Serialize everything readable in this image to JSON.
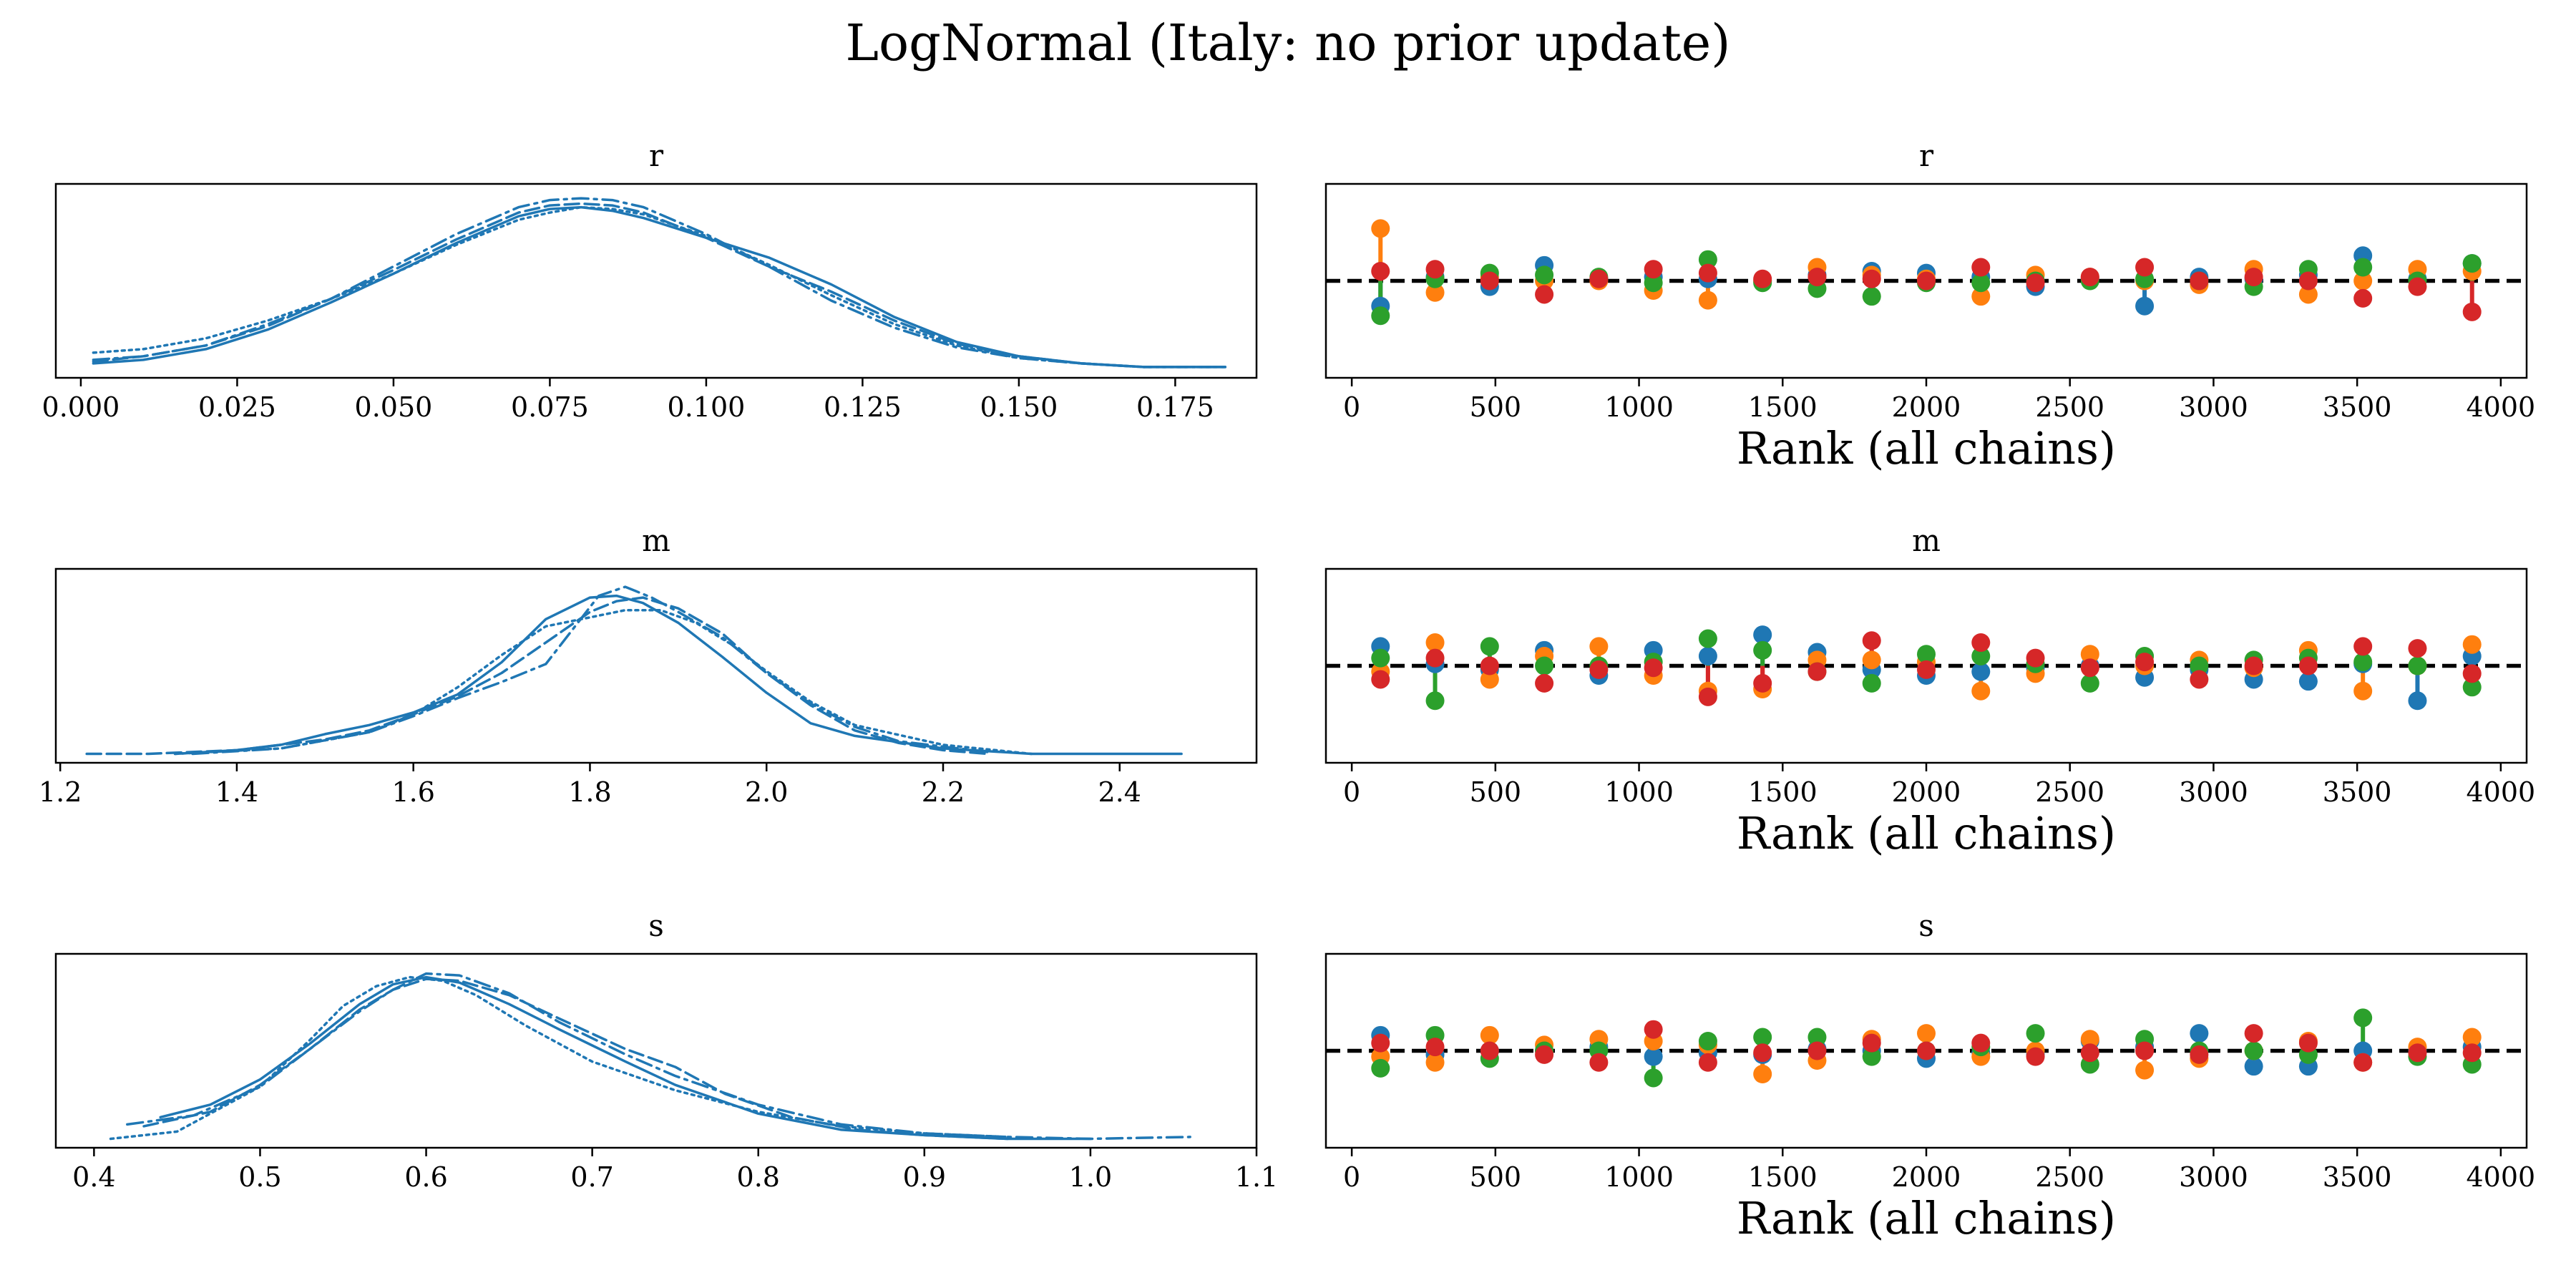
{
  "figure": {
    "title": "LogNormal (Italy: no prior update)"
  },
  "colors": {
    "line": "#1f77b4",
    "chains": [
      "#1f77b4",
      "#ff7f0e",
      "#2ca02c",
      "#d62728"
    ]
  },
  "chart_data": [
    {
      "id": "density-r",
      "type": "line",
      "kind": "density",
      "title": "r",
      "xlim": [
        -0.004,
        0.188
      ],
      "ylim": [
        0,
        1.08
      ],
      "grid": false,
      "xticks": [
        0.0,
        0.025,
        0.05,
        0.075,
        0.1,
        0.125,
        0.15,
        0.175
      ],
      "xtick_labels": [
        "0.000",
        "0.025",
        "0.050",
        "0.075",
        "0.100",
        "0.125",
        "0.150",
        "0.175"
      ],
      "series": [
        {
          "style": "solid",
          "x": [
            0.002,
            0.01,
            0.02,
            0.03,
            0.04,
            0.05,
            0.06,
            0.07,
            0.075,
            0.08,
            0.085,
            0.09,
            0.1,
            0.11,
            0.12,
            0.13,
            0.14,
            0.15,
            0.16,
            0.17,
            0.183
          ],
          "y": [
            0.08,
            0.1,
            0.16,
            0.27,
            0.42,
            0.58,
            0.75,
            0.9,
            0.94,
            0.95,
            0.93,
            0.89,
            0.78,
            0.67,
            0.52,
            0.34,
            0.2,
            0.12,
            0.08,
            0.06,
            0.06
          ]
        },
        {
          "style": "dashed",
          "x": [
            0.002,
            0.01,
            0.02,
            0.03,
            0.04,
            0.05,
            0.06,
            0.07,
            0.075,
            0.08,
            0.085,
            0.09,
            0.1,
            0.11,
            0.12,
            0.13,
            0.14,
            0.15,
            0.16,
            0.17,
            0.183
          ],
          "y": [
            0.09,
            0.12,
            0.18,
            0.29,
            0.44,
            0.6,
            0.77,
            0.92,
            0.96,
            0.97,
            0.96,
            0.92,
            0.78,
            0.62,
            0.48,
            0.32,
            0.19,
            0.12,
            0.08,
            0.06,
            0.06
          ]
        },
        {
          "style": "dashdot",
          "x": [
            0.002,
            0.01,
            0.02,
            0.03,
            0.04,
            0.05,
            0.06,
            0.07,
            0.075,
            0.08,
            0.085,
            0.09,
            0.1,
            0.11,
            0.12,
            0.13,
            0.14,
            0.15,
            0.16,
            0.17,
            0.183
          ],
          "y": [
            0.1,
            0.12,
            0.18,
            0.3,
            0.44,
            0.62,
            0.8,
            0.95,
            0.99,
            1.0,
            0.99,
            0.95,
            0.8,
            0.62,
            0.43,
            0.28,
            0.17,
            0.11,
            0.08,
            0.06,
            0.06
          ]
        },
        {
          "style": "dotted",
          "x": [
            0.002,
            0.01,
            0.02,
            0.03,
            0.04,
            0.05,
            0.06,
            0.07,
            0.075,
            0.08,
            0.085,
            0.09,
            0.1,
            0.11,
            0.12,
            0.13,
            0.14,
            0.15,
            0.16,
            0.17,
            0.183
          ],
          "y": [
            0.14,
            0.16,
            0.22,
            0.32,
            0.44,
            0.58,
            0.74,
            0.88,
            0.92,
            0.95,
            0.94,
            0.91,
            0.79,
            0.63,
            0.46,
            0.3,
            0.18,
            0.11,
            0.08,
            0.06,
            0.06
          ]
        }
      ]
    },
    {
      "id": "rank-r",
      "type": "scatter",
      "kind": "rank",
      "title": "r",
      "xlabel": "Rank (all chains)",
      "xlim": [
        -90,
        4090
      ],
      "ylim": [
        0,
        1
      ],
      "reference_line": 0.5,
      "grid": false,
      "xticks": [
        0,
        500,
        1000,
        1500,
        2000,
        2500,
        3000,
        3500,
        4000
      ],
      "xtick_labels": [
        "0",
        "500",
        "1000",
        "1500",
        "2000",
        "2500",
        "3000",
        "3500",
        "4000"
      ],
      "x": [
        100,
        290,
        480,
        670,
        860,
        1050,
        1240,
        1430,
        1620,
        1810,
        2000,
        2190,
        2380,
        2570,
        2760,
        2950,
        3140,
        3330,
        3520,
        3710,
        3900
      ],
      "series": [
        {
          "chain": 1,
          "values": [
            0.37,
            0.52,
            0.47,
            0.58,
            0.51,
            0.52,
            0.51,
            0.5,
            0.53,
            0.55,
            0.54,
            0.52,
            0.47,
            0.51,
            0.37,
            0.52,
            0.51,
            0.53,
            0.63,
            0.51,
            0.59
          ]
        },
        {
          "chain": 2,
          "values": [
            0.77,
            0.44,
            0.52,
            0.5,
            0.5,
            0.45,
            0.4,
            0.5,
            0.57,
            0.53,
            0.51,
            0.42,
            0.53,
            0.52,
            0.5,
            0.48,
            0.56,
            0.43,
            0.5,
            0.56,
            0.55
          ]
        },
        {
          "chain": 3,
          "values": [
            0.32,
            0.51,
            0.54,
            0.53,
            0.52,
            0.49,
            0.61,
            0.49,
            0.46,
            0.42,
            0.49,
            0.49,
            0.5,
            0.5,
            0.51,
            0.5,
            0.47,
            0.56,
            0.57,
            0.5,
            0.59
          ]
        },
        {
          "chain": 4,
          "values": [
            0.55,
            0.56,
            0.5,
            0.43,
            0.51,
            0.56,
            0.54,
            0.51,
            0.52,
            0.51,
            0.5,
            0.57,
            0.49,
            0.52,
            0.57,
            0.5,
            0.52,
            0.5,
            0.41,
            0.47,
            0.34
          ]
        }
      ]
    },
    {
      "id": "density-m",
      "type": "line",
      "kind": "density",
      "title": "m",
      "xlim": [
        1.195,
        2.555
      ],
      "ylim": [
        0,
        1.08
      ],
      "grid": false,
      "xticks": [
        1.2,
        1.4,
        1.6,
        1.8,
        2.0,
        2.2,
        2.4
      ],
      "xtick_labels": [
        "1.2",
        "1.4",
        "1.6",
        "1.8",
        "2.0",
        "2.2",
        "2.4"
      ],
      "series": [
        {
          "style": "solid",
          "x": [
            1.33,
            1.4,
            1.45,
            1.5,
            1.55,
            1.6,
            1.65,
            1.7,
            1.75,
            1.8,
            1.83,
            1.86,
            1.9,
            1.95,
            2.0,
            2.05,
            2.1,
            2.2,
            2.3,
            2.4,
            2.47
          ],
          "y": [
            0.05,
            0.07,
            0.1,
            0.16,
            0.21,
            0.28,
            0.38,
            0.56,
            0.8,
            0.92,
            0.93,
            0.89,
            0.78,
            0.59,
            0.39,
            0.22,
            0.15,
            0.08,
            0.05,
            0.05,
            0.05
          ]
        },
        {
          "style": "dashed",
          "x": [
            1.23,
            1.3,
            1.35,
            1.4,
            1.45,
            1.5,
            1.55,
            1.6,
            1.65,
            1.7,
            1.75,
            1.8,
            1.83,
            1.86,
            1.9,
            1.95,
            2.0,
            2.05,
            2.1,
            2.15,
            2.2,
            2.25
          ],
          "y": [
            0.05,
            0.05,
            0.06,
            0.07,
            0.1,
            0.13,
            0.18,
            0.27,
            0.37,
            0.5,
            0.67,
            0.84,
            0.9,
            0.92,
            0.86,
            0.72,
            0.5,
            0.32,
            0.18,
            0.11,
            0.07,
            0.05
          ]
        },
        {
          "style": "dashdot",
          "x": [
            1.35,
            1.45,
            1.55,
            1.6,
            1.65,
            1.7,
            1.75,
            1.78,
            1.81,
            1.84,
            1.87,
            1.9,
            1.95,
            2.0,
            2.05,
            2.1,
            2.15,
            2.25
          ],
          "y": [
            0.05,
            0.08,
            0.17,
            0.26,
            0.36,
            0.45,
            0.55,
            0.74,
            0.93,
            0.98,
            0.92,
            0.84,
            0.7,
            0.5,
            0.33,
            0.2,
            0.12,
            0.06
          ]
        },
        {
          "style": "dotted",
          "x": [
            1.33,
            1.45,
            1.55,
            1.6,
            1.65,
            1.7,
            1.75,
            1.8,
            1.84,
            1.88,
            1.92,
            1.96,
            2.0,
            2.05,
            2.1,
            2.2,
            2.3
          ],
          "y": [
            0.05,
            0.08,
            0.17,
            0.27,
            0.42,
            0.6,
            0.76,
            0.81,
            0.85,
            0.85,
            0.78,
            0.66,
            0.51,
            0.34,
            0.21,
            0.1,
            0.05
          ]
        }
      ]
    },
    {
      "id": "rank-m",
      "type": "scatter",
      "kind": "rank",
      "title": "m",
      "xlabel": "Rank (all chains)",
      "xlim": [
        -90,
        4090
      ],
      "ylim": [
        0,
        1
      ],
      "reference_line": 0.5,
      "grid": false,
      "xticks": [
        0,
        500,
        1000,
        1500,
        2000,
        2500,
        3000,
        3500,
        4000
      ],
      "xtick_labels": [
        "0",
        "500",
        "1000",
        "1500",
        "2000",
        "2500",
        "3000",
        "3500",
        "4000"
      ],
      "x": [
        100,
        290,
        480,
        670,
        860,
        1050,
        1240,
        1430,
        1620,
        1810,
        2000,
        2190,
        2380,
        2570,
        2760,
        2950,
        3140,
        3330,
        3520,
        3710,
        3900
      ],
      "series": [
        {
          "chain": 1,
          "values": [
            0.6,
            0.51,
            0.48,
            0.58,
            0.45,
            0.58,
            0.55,
            0.66,
            0.57,
            0.48,
            0.45,
            0.47,
            0.49,
            0.5,
            0.44,
            0.48,
            0.43,
            0.42,
            0.51,
            0.32,
            0.55
          ]
        },
        {
          "chain": 2,
          "values": [
            0.47,
            0.62,
            0.43,
            0.55,
            0.6,
            0.45,
            0.37,
            0.38,
            0.53,
            0.53,
            0.52,
            0.37,
            0.46,
            0.56,
            0.5,
            0.53,
            0.49,
            0.58,
            0.37,
            0.5,
            0.61
          ]
        },
        {
          "chain": 3,
          "values": [
            0.54,
            0.32,
            0.6,
            0.5,
            0.5,
            0.52,
            0.64,
            0.58,
            0.47,
            0.41,
            0.56,
            0.55,
            0.51,
            0.41,
            0.55,
            0.5,
            0.53,
            0.54,
            0.52,
            0.5,
            0.39
          ]
        },
        {
          "chain": 4,
          "values": [
            0.43,
            0.54,
            0.5,
            0.41,
            0.48,
            0.49,
            0.34,
            0.41,
            0.47,
            0.63,
            0.48,
            0.62,
            0.54,
            0.49,
            0.52,
            0.43,
            0.5,
            0.5,
            0.6,
            0.59,
            0.46
          ]
        }
      ]
    },
    {
      "id": "density-s",
      "type": "line",
      "kind": "density",
      "title": "s",
      "xlim": [
        0.377,
        1.1
      ],
      "ylim": [
        0,
        1.08
      ],
      "grid": false,
      "xticks": [
        0.4,
        0.5,
        0.6,
        0.7,
        0.8,
        0.9,
        1.0,
        1.1
      ],
      "xtick_labels": [
        "0.4",
        "0.5",
        "0.6",
        "0.7",
        "0.8",
        "0.9",
        "1.0",
        "1.1"
      ],
      "series": [
        {
          "style": "solid",
          "x": [
            0.44,
            0.47,
            0.5,
            0.53,
            0.56,
            0.58,
            0.6,
            0.62,
            0.65,
            0.68,
            0.7,
            0.72,
            0.75,
            0.8,
            0.85,
            0.9,
            0.95,
            1.0
          ],
          "y": [
            0.17,
            0.24,
            0.38,
            0.58,
            0.8,
            0.91,
            0.95,
            0.92,
            0.8,
            0.66,
            0.57,
            0.48,
            0.35,
            0.19,
            0.1,
            0.07,
            0.05,
            0.05
          ]
        },
        {
          "style": "dashed",
          "x": [
            0.43,
            0.47,
            0.5,
            0.53,
            0.56,
            0.58,
            0.6,
            0.62,
            0.65,
            0.68,
            0.72,
            0.75,
            0.78,
            0.82,
            0.86,
            0.9,
            0.95
          ],
          "y": [
            0.12,
            0.2,
            0.35,
            0.55,
            0.77,
            0.88,
            0.94,
            0.93,
            0.85,
            0.72,
            0.55,
            0.45,
            0.3,
            0.17,
            0.1,
            0.07,
            0.05
          ]
        },
        {
          "style": "dashdot",
          "x": [
            0.42,
            0.46,
            0.5,
            0.53,
            0.56,
            0.58,
            0.6,
            0.62,
            0.65,
            0.68,
            0.72,
            0.75,
            0.8,
            0.85,
            0.9,
            0.95,
            1.0,
            1.06
          ],
          "y": [
            0.13,
            0.18,
            0.34,
            0.55,
            0.76,
            0.88,
            0.97,
            0.96,
            0.86,
            0.7,
            0.52,
            0.4,
            0.24,
            0.13,
            0.08,
            0.06,
            0.05,
            0.06
          ]
        },
        {
          "style": "dotted",
          "x": [
            0.41,
            0.45,
            0.5,
            0.53,
            0.55,
            0.57,
            0.59,
            0.61,
            0.63,
            0.66,
            0.7,
            0.75,
            0.8,
            0.85,
            0.9,
            0.95
          ],
          "y": [
            0.05,
            0.09,
            0.34,
            0.6,
            0.79,
            0.9,
            0.95,
            0.93,
            0.85,
            0.68,
            0.48,
            0.32,
            0.2,
            0.12,
            0.08,
            0.06
          ]
        }
      ]
    },
    {
      "id": "rank-s",
      "type": "scatter",
      "kind": "rank",
      "title": "s",
      "xlabel": "Rank (all chains)",
      "xlim": [
        -90,
        4090
      ],
      "ylim": [
        0,
        1
      ],
      "reference_line": 0.5,
      "grid": false,
      "xticks": [
        0,
        500,
        1000,
        1500,
        2000,
        2500,
        3000,
        3500,
        4000
      ],
      "xtick_labels": [
        "0",
        "500",
        "1000",
        "1500",
        "2000",
        "2500",
        "3000",
        "3500",
        "4000"
      ],
      "x": [
        100,
        290,
        480,
        670,
        860,
        1050,
        1240,
        1430,
        1620,
        1810,
        2000,
        2190,
        2380,
        2570,
        2760,
        2950,
        3140,
        3330,
        3520,
        3710,
        3900
      ],
      "series": [
        {
          "chain": 1,
          "values": [
            0.58,
            0.48,
            0.5,
            0.5,
            0.52,
            0.47,
            0.49,
            0.48,
            0.51,
            0.5,
            0.46,
            0.49,
            0.48,
            0.55,
            0.52,
            0.59,
            0.42,
            0.42,
            0.5,
            0.5,
            0.52
          ]
        },
        {
          "chain": 2,
          "values": [
            0.47,
            0.44,
            0.58,
            0.53,
            0.56,
            0.55,
            0.53,
            0.38,
            0.45,
            0.56,
            0.59,
            0.47,
            0.5,
            0.56,
            0.4,
            0.46,
            0.5,
            0.55,
            0.44,
            0.52,
            0.57
          ]
        },
        {
          "chain": 3,
          "values": [
            0.41,
            0.58,
            0.46,
            0.5,
            0.5,
            0.36,
            0.55,
            0.57,
            0.57,
            0.47,
            0.5,
            0.52,
            0.59,
            0.43,
            0.56,
            0.5,
            0.5,
            0.48,
            0.67,
            0.47,
            0.43
          ]
        },
        {
          "chain": 4,
          "values": [
            0.54,
            0.52,
            0.5,
            0.48,
            0.44,
            0.61,
            0.44,
            0.49,
            0.5,
            0.54,
            0.5,
            0.54,
            0.47,
            0.49,
            0.5,
            0.48,
            0.59,
            0.54,
            0.44,
            0.49,
            0.49
          ]
        }
      ]
    }
  ]
}
